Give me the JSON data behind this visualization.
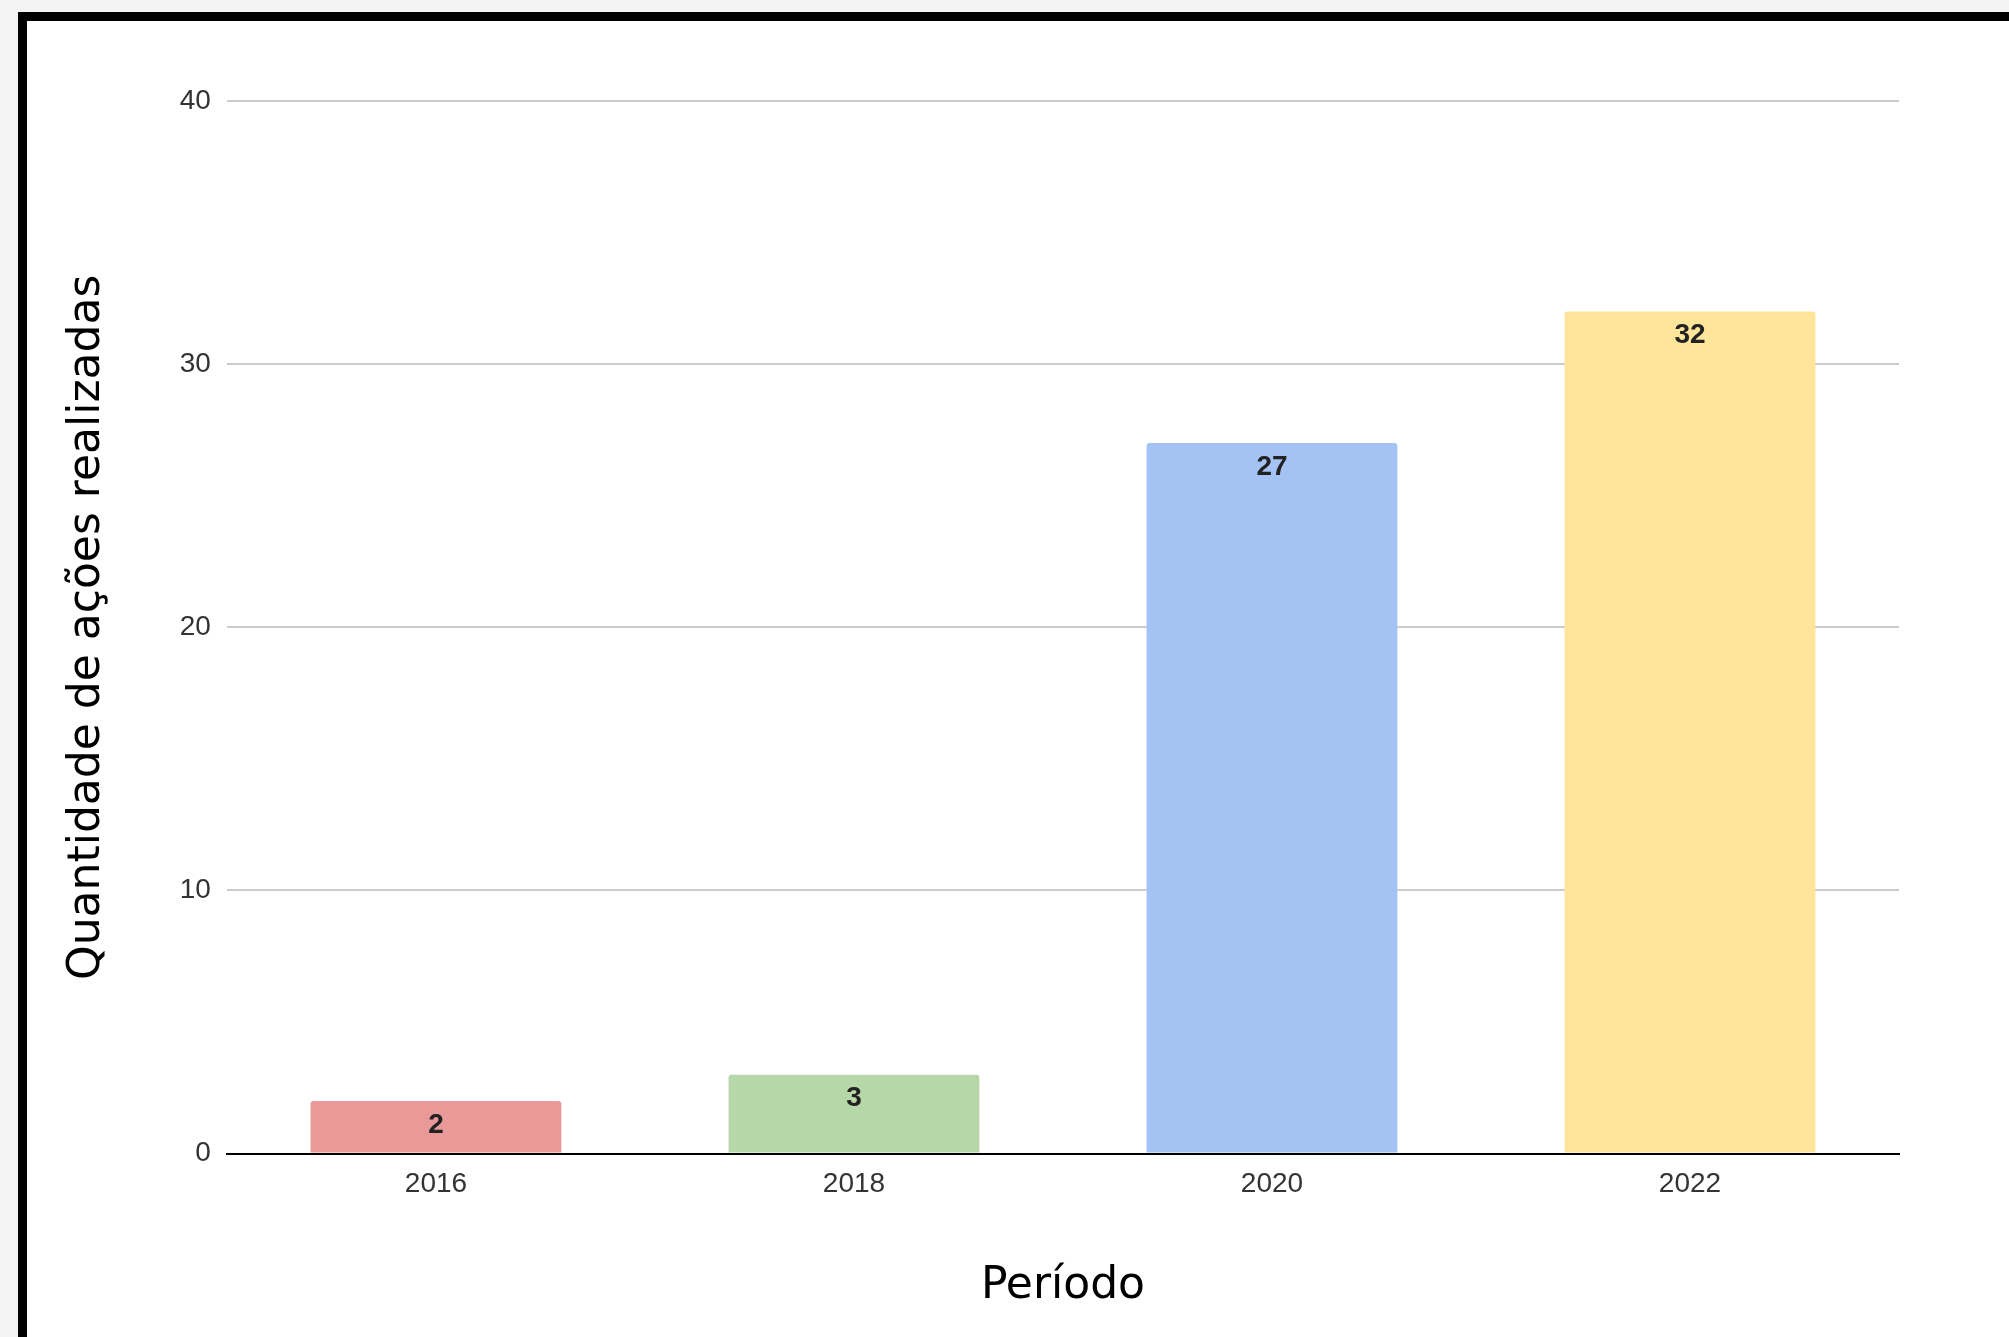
{
  "chart_data": {
    "type": "bar",
    "xlabel": "Período",
    "ylabel": "Quantidade de ações realizadas",
    "categories": [
      "2016",
      "2018",
      "2020",
      "2022"
    ],
    "values": [
      2,
      3,
      27,
      32
    ],
    "colors": [
      "#ea9999",
      "#b6d7a8",
      "#a4c2f4",
      "#ffe599"
    ],
    "ylim": [
      0,
      40
    ],
    "yticks": [
      0,
      10,
      20,
      30,
      40
    ],
    "grid": "y",
    "data_labels": true,
    "legend": false
  }
}
